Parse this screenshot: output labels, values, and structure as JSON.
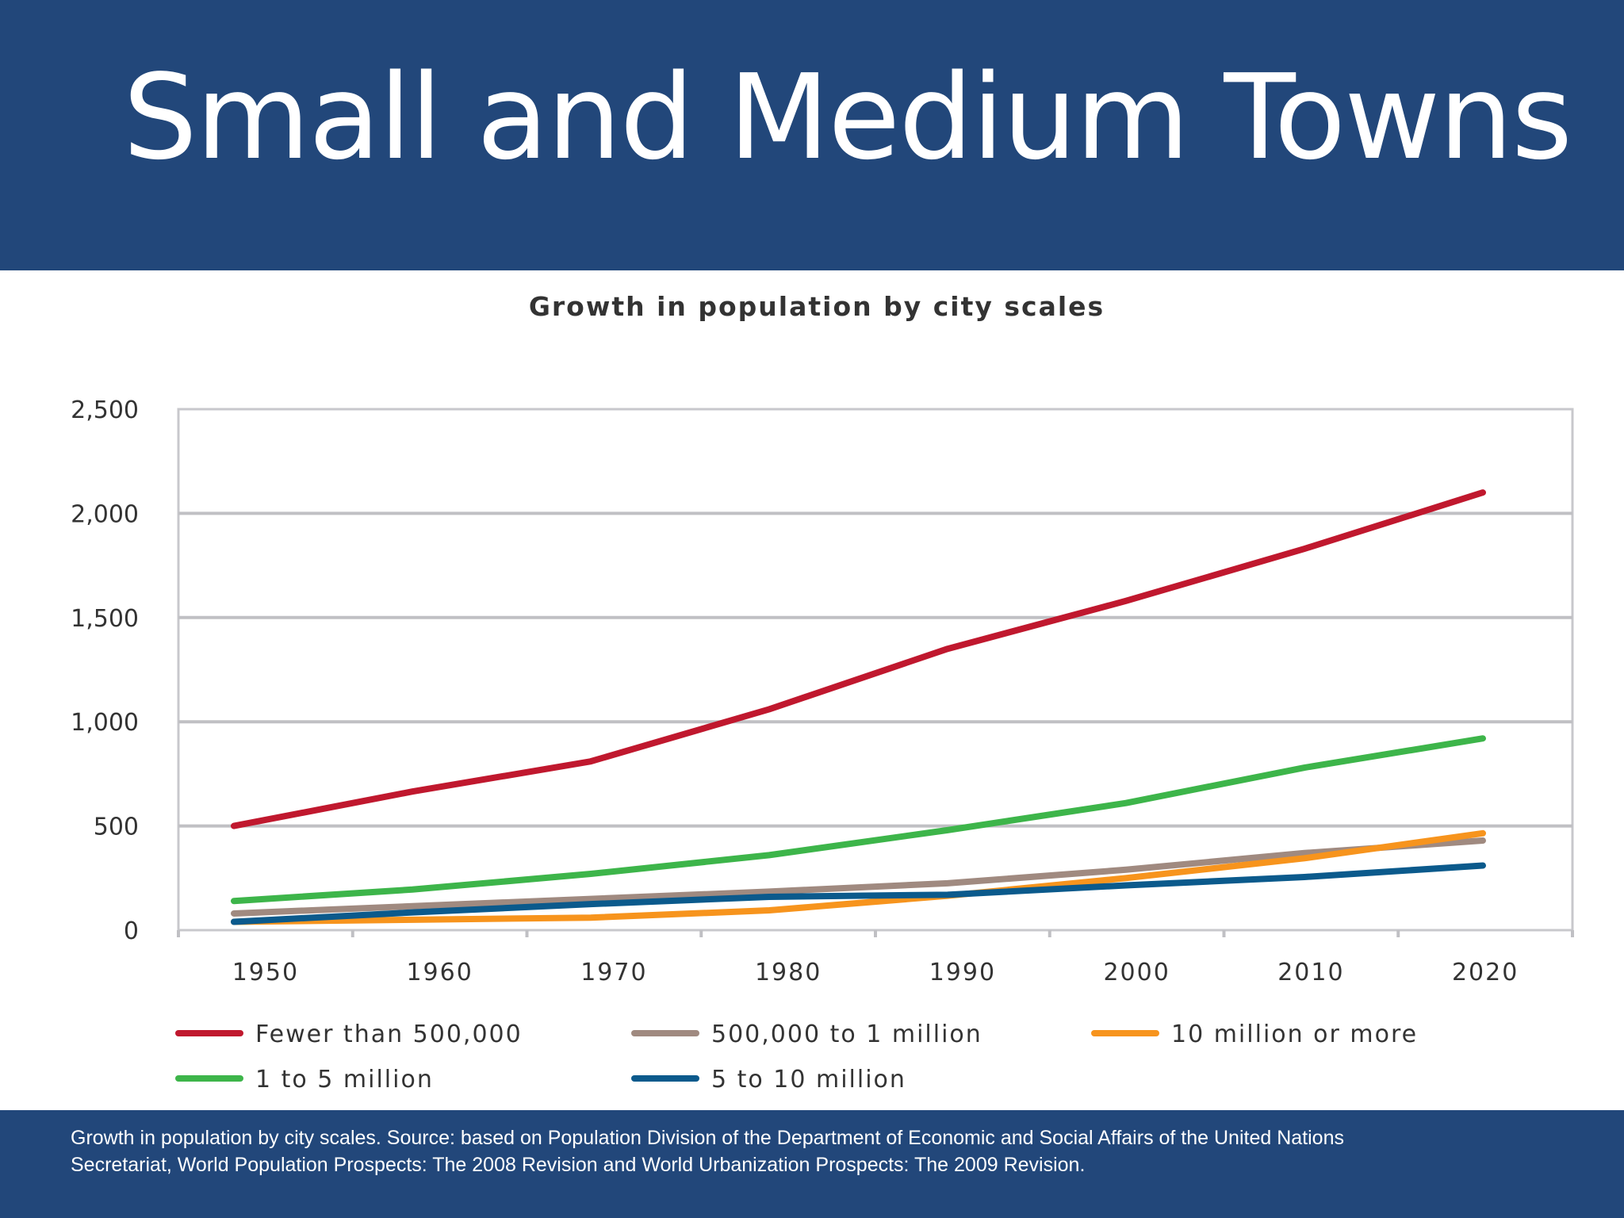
{
  "slide": {
    "title": "Small and Medium Towns",
    "caption": "Growth in population by city scales. Source: based on Population Division of the Department of Economic and Social Affairs of the United Nations Secretariat, World Population Prospects: The 2008 Revision and World Urbanization Prospects: The 2009 Revision.",
    "colors": {
      "header": "#22477a",
      "footer": "#22477a"
    }
  },
  "chart_data": {
    "type": "line",
    "title": "Growth in population by city scales",
    "xlabel": "",
    "ylabel": "",
    "x": [
      1950,
      1960,
      1970,
      1980,
      1990,
      2000,
      2010,
      2020
    ],
    "x_tick_labels": [
      "1950",
      "1960",
      "1970",
      "1980",
      "1990",
      "2000",
      "2010",
      "2020"
    ],
    "y_tick_labels": [
      "0",
      "500",
      "1,000",
      "1,500",
      "2,000",
      "2,500"
    ],
    "y_ticks": [
      0,
      500,
      1000,
      1500,
      2000,
      2500
    ],
    "ylim": [
      0,
      2500
    ],
    "grid": "horizontal",
    "legend_position": "bottom",
    "series": [
      {
        "name": "Fewer than 500,000",
        "color": "#c0182e",
        "values": [
          500,
          665,
          810,
          1060,
          1350,
          1580,
          1830,
          2100
        ]
      },
      {
        "name": "500,000 to 1 million",
        "color": "#a08a80",
        "values": [
          80,
          115,
          150,
          185,
          225,
          290,
          370,
          430
        ]
      },
      {
        "name": "10 million or more",
        "color": "#f7941d",
        "values": [
          40,
          50,
          60,
          95,
          165,
          250,
          345,
          465
        ]
      },
      {
        "name": "1 to 5 million",
        "color": "#3db54a",
        "values": [
          140,
          195,
          270,
          360,
          480,
          610,
          780,
          920
        ]
      },
      {
        "name": "5 to 10 million",
        "color": "#0b5a8c",
        "values": [
          40,
          85,
          125,
          160,
          170,
          215,
          255,
          310
        ]
      }
    ]
  }
}
